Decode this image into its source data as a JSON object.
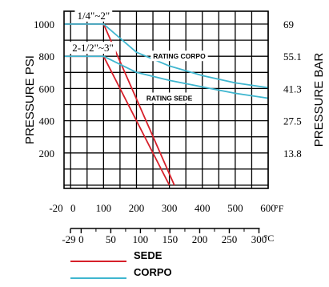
{
  "chart_data": {
    "type": "line",
    "ylabel_left": "PRESSURE PSI",
    "ylabel_right": "PRESSURE BAR",
    "psi_ticks": [
      1000,
      800,
      600,
      400,
      200
    ],
    "bar_ticks": [
      "69",
      "55.1",
      "41.3",
      "27.5",
      "13.8"
    ],
    "bar_tick_psi": [
      1000,
      800,
      600,
      400,
      200
    ],
    "xlim_f": [
      -20,
      600
    ],
    "ylim_psi": [
      0,
      1100
    ],
    "fahrenheit_ticks": [
      "-20",
      "0",
      "100",
      "200",
      "300",
      "400",
      "500",
      "600"
    ],
    "fahrenheit_tick_values": [
      -20,
      0,
      100,
      200,
      300,
      400,
      500,
      600
    ],
    "fahrenheit_unit": "°F",
    "celsius_ticks": [
      "-29",
      "0",
      "50",
      "100",
      "150",
      "200",
      "250",
      "300"
    ],
    "celsius_tick_values": [
      -29,
      0,
      50,
      100,
      150,
      200,
      250,
      300
    ],
    "celsius_unit": "°C",
    "grid": true,
    "size_labels": [
      {
        "text": "1/4\"~2\"",
        "x": 20,
        "y": 1055
      },
      {
        "text": "2-1/2\"~3\"",
        "x": 0,
        "y": 855
      }
    ],
    "annotations": [
      {
        "text": "RATING CORPO",
        "x": 330,
        "y": 800
      },
      {
        "text": "RATING SEDE",
        "x": 300,
        "y": 540
      }
    ],
    "series": [
      {
        "name": "SEDE",
        "color": "#d6202a",
        "x": [
          -20,
          100,
          315
        ],
        "y": [
          1000,
          1000,
          0
        ]
      },
      {
        "name": "SEDE",
        "color": "#d6202a",
        "x": [
          -20,
          100,
          300
        ],
        "y": [
          800,
          800,
          0
        ]
      },
      {
        "name": "CORPO",
        "color": "#3fb6cf",
        "x": [
          -20,
          100,
          200,
          300,
          400,
          500,
          600
        ],
        "y": [
          1000,
          1000,
          825,
          740,
          680,
          635,
          605
        ]
      },
      {
        "name": "CORPO",
        "color": "#3fb6cf",
        "x": [
          -20,
          100,
          200,
          300,
          400,
          500,
          600
        ],
        "y": [
          800,
          800,
          700,
          650,
          610,
          570,
          540
        ]
      }
    ],
    "legend": [
      {
        "name": "SEDE",
        "color": "#d6202a"
      },
      {
        "name": "CORPO",
        "color": "#3fb6cf"
      }
    ],
    "legend_position": "bottom-center"
  }
}
